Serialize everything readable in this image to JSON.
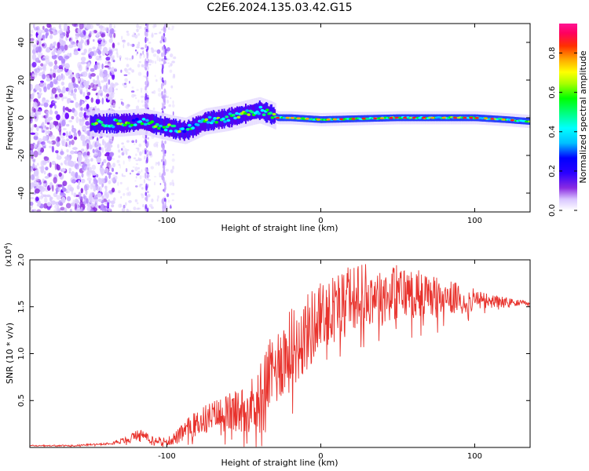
{
  "title": "C2E6.2024.135.03.42.G15",
  "colors": {
    "snr_line": "#e8322c",
    "spectrogram_palette": [
      "#ffffff",
      "#d8c4ff",
      "#b388ff",
      "#8a2be2",
      "#3a10ff",
      "#0000ff",
      "#00bfff",
      "#00ffff",
      "#00ff80",
      "#00ff00",
      "#aaff00",
      "#ffff00",
      "#ffa500",
      "#ff3000",
      "#ff0060",
      "#ff1493"
    ]
  },
  "chart_data": [
    {
      "type": "heatmap",
      "id": "spectrogram",
      "xlabel": "Height of straight line (km)",
      "ylabel": "Frequency (Hz)",
      "xlim": [
        -189,
        136
      ],
      "ylim": [
        -50,
        50
      ],
      "x_ticks": [
        -100,
        0,
        100
      ],
      "y_ticks": [
        -40,
        -20,
        0,
        20,
        40
      ],
      "colorbar": {
        "label": "Normalized spectral amplitude",
        "range": [
          0,
          0.95
        ],
        "ticks": [
          0.0,
          0.2,
          0.4,
          0.6,
          0.8
        ]
      },
      "signal_center_hz": [
        [
          -145,
          -3
        ],
        [
          -130,
          -3
        ],
        [
          -115,
          -2
        ],
        [
          -105,
          -4
        ],
        [
          -95,
          -6
        ],
        [
          -88,
          -7
        ],
        [
          -75,
          -2
        ],
        [
          -60,
          0
        ],
        [
          -50,
          2
        ],
        [
          -40,
          4
        ],
        [
          -33,
          2
        ],
        [
          -28,
          0
        ],
        [
          -20,
          0
        ],
        [
          0,
          -1
        ],
        [
          50,
          0
        ],
        [
          100,
          0
        ],
        [
          120,
          -1
        ],
        [
          136,
          -2
        ]
      ],
      "notes": "Noisy wideband content for heights below about -95 km; narrow signal near 0 Hz above about -30 km"
    },
    {
      "type": "line",
      "id": "snr",
      "xlabel": "Height of straight line (km)",
      "ylabel": "SNR (10 * v/v)",
      "y_scale_label": "(x10",
      "y_scale_exp": "4",
      "y_scale_close": ")",
      "xlim": [
        -189,
        136
      ],
      "ylim": [
        0,
        2.0
      ],
      "x_ticks": [
        -100,
        0,
        100
      ],
      "y_ticks": [
        0.5,
        1.0,
        1.5,
        2.0
      ],
      "y_tick_labels": [
        "0.5",
        "1.0",
        "1.5",
        "2.0"
      ],
      "series": [
        {
          "envelope": [
            [
              -189,
              0.02
            ],
            [
              -160,
              0.02
            ],
            [
              -140,
              0.04
            ],
            [
              -125,
              0.08
            ],
            [
              -118,
              0.15
            ],
            [
              -110,
              0.1
            ],
            [
              -100,
              0.06
            ],
            [
              -92,
              0.12
            ],
            [
              -85,
              0.22
            ],
            [
              -75,
              0.3
            ],
            [
              -65,
              0.35
            ],
            [
              -55,
              0.38
            ],
            [
              -45,
              0.45
            ],
            [
              -35,
              0.7
            ],
            [
              -25,
              0.95
            ],
            [
              -15,
              1.1
            ],
            [
              -5,
              1.3
            ],
            [
              5,
              1.45
            ],
            [
              15,
              1.55
            ],
            [
              25,
              1.62
            ],
            [
              40,
              1.65
            ],
            [
              60,
              1.65
            ],
            [
              80,
              1.6
            ],
            [
              100,
              1.57
            ],
            [
              120,
              1.55
            ],
            [
              136,
              1.53
            ]
          ],
          "noise_amplitude": [
            [
              -189,
              0.005
            ],
            [
              -140,
              0.01
            ],
            [
              -120,
              0.05
            ],
            [
              -100,
              0.04
            ],
            [
              -90,
              0.1
            ],
            [
              -70,
              0.18
            ],
            [
              -50,
              0.25
            ],
            [
              -35,
              0.4
            ],
            [
              -20,
              0.45
            ],
            [
              0,
              0.4
            ],
            [
              30,
              0.33
            ],
            [
              60,
              0.28
            ],
            [
              90,
              0.16
            ],
            [
              110,
              0.08
            ],
            [
              125,
              0.04
            ],
            [
              136,
              0.02
            ]
          ]
        }
      ]
    }
  ]
}
